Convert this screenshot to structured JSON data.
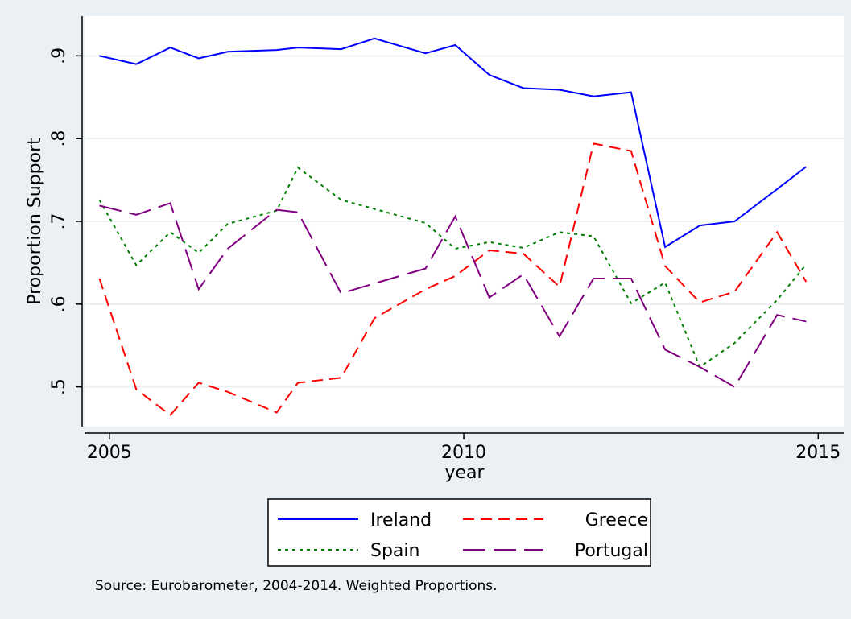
{
  "chart_data": {
    "type": "line",
    "y_label": "Proportion Support",
    "x_label": "year",
    "note": "Source: Eurobarometer, 2004-2014. Weighted Proportions.",
    "x": [
      2004.86,
      2005.38,
      2005.86,
      2006.26,
      2006.67,
      2007.36,
      2007.66,
      2008.27,
      2008.74,
      2009.46,
      2009.88,
      2010.36,
      2010.84,
      2011.35,
      2011.83,
      2012.36,
      2012.84,
      2013.33,
      2013.82,
      2014.42,
      2014.83
    ],
    "series": [
      {
        "name": "Ireland",
        "color": "#0000ff",
        "style": "solid",
        "values": [
          0.9,
          0.89,
          0.91,
          0.897,
          0.905,
          0.907,
          0.91,
          0.908,
          0.921,
          0.903,
          0.913,
          0.877,
          0.861,
          0.859,
          0.851,
          0.856,
          0.669,
          0.695,
          0.7,
          0.739,
          0.766
        ]
      },
      {
        "name": "Greece",
        "color": "#ff0000",
        "style": "dash",
        "values": [
          0.631,
          0.497,
          0.466,
          0.505,
          0.494,
          0.469,
          0.505,
          0.511,
          0.583,
          0.618,
          0.634,
          0.665,
          0.661,
          0.621,
          0.794,
          0.785,
          0.646,
          0.602,
          0.615,
          0.687,
          0.627
        ]
      },
      {
        "name": "Spain",
        "color": "#008000",
        "style": "dot",
        "values": [
          0.726,
          0.647,
          0.687,
          0.662,
          0.697,
          0.713,
          0.765,
          0.726,
          0.715,
          0.698,
          0.667,
          0.675,
          0.668,
          0.687,
          0.682,
          0.601,
          0.626,
          0.524,
          0.553,
          0.605,
          0.648
        ]
      },
      {
        "name": "Portugal",
        "color": "#800080",
        "style": "longdash",
        "values": [
          0.719,
          0.708,
          0.722,
          0.618,
          0.667,
          0.714,
          0.711,
          0.613,
          0.625,
          0.643,
          0.706,
          0.608,
          0.636,
          0.561,
          0.631,
          0.631,
          0.545,
          0.524,
          0.5,
          0.587,
          0.579
        ]
      }
    ],
    "xlim": [
      2004.65,
      2015.36
    ],
    "xticks": [
      2005,
      2010,
      2015
    ],
    "ylim": [
      0.452,
      0.948
    ],
    "yticks": [
      {
        "value": 0.5,
        "label": ".5"
      },
      {
        "value": 0.6,
        "label": ".6"
      },
      {
        "value": 0.7,
        "label": ".7"
      },
      {
        "value": 0.8,
        "label": ".8"
      },
      {
        "value": 0.9,
        "label": ".9"
      }
    ],
    "grid": true
  }
}
